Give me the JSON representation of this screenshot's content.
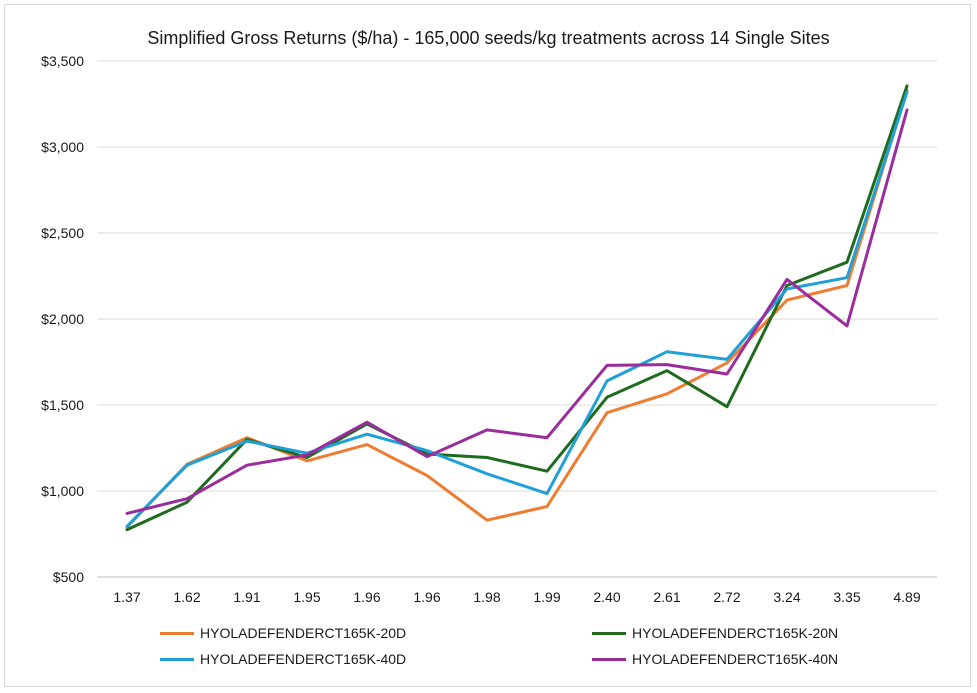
{
  "chart_data": {
    "type": "line",
    "title": "Simplified Gross Returns ($/ha) - 165,000 seeds/kg treatments across 14 Single Sites",
    "xlabel": "",
    "ylabel": "",
    "categories": [
      "1.37",
      "1.62",
      "1.91",
      "1.95",
      "1.96",
      "1.96",
      "1.98",
      "1.99",
      "2.40",
      "2.61",
      "2.72",
      "3.24",
      "3.35",
      "4.89"
    ],
    "ylim": [
      500,
      3500
    ],
    "yticks": [
      500,
      1000,
      1500,
      2000,
      2500,
      3000,
      3500
    ],
    "ytick_labels": [
      "$500",
      "$1,000",
      "$1,500",
      "$2,000",
      "$2,500",
      "$3,000",
      "$3,500"
    ],
    "grid": true,
    "legend_position": "bottom",
    "series": [
      {
        "name": "HYOLADEFENDERCT165K-20D",
        "color": "#ed7d31",
        "values": [
          790,
          1155,
          1310,
          1175,
          1270,
          1090,
          830,
          910,
          1455,
          1565,
          1745,
          2110,
          2195,
          3330
        ]
      },
      {
        "name": "HYOLADEFENDERCT165K-20N",
        "color": "#1e6b1e",
        "values": [
          775,
          935,
          1300,
          1195,
          1390,
          1215,
          1195,
          1115,
          1545,
          1700,
          1490,
          2195,
          2330,
          3355
        ]
      },
      {
        "name": "HYOLADEFENDERCT165K-40D",
        "color": "#1fa0d6",
        "values": [
          795,
          1150,
          1290,
          1220,
          1330,
          1235,
          1100,
          985,
          1640,
          1810,
          1765,
          2175,
          2240,
          3320
        ]
      },
      {
        "name": "HYOLADEFENDERCT165K-40N",
        "color": "#9b2c9b",
        "values": [
          870,
          955,
          1150,
          1210,
          1400,
          1200,
          1355,
          1310,
          1730,
          1735,
          1680,
          2230,
          1960,
          3215
        ]
      }
    ]
  }
}
